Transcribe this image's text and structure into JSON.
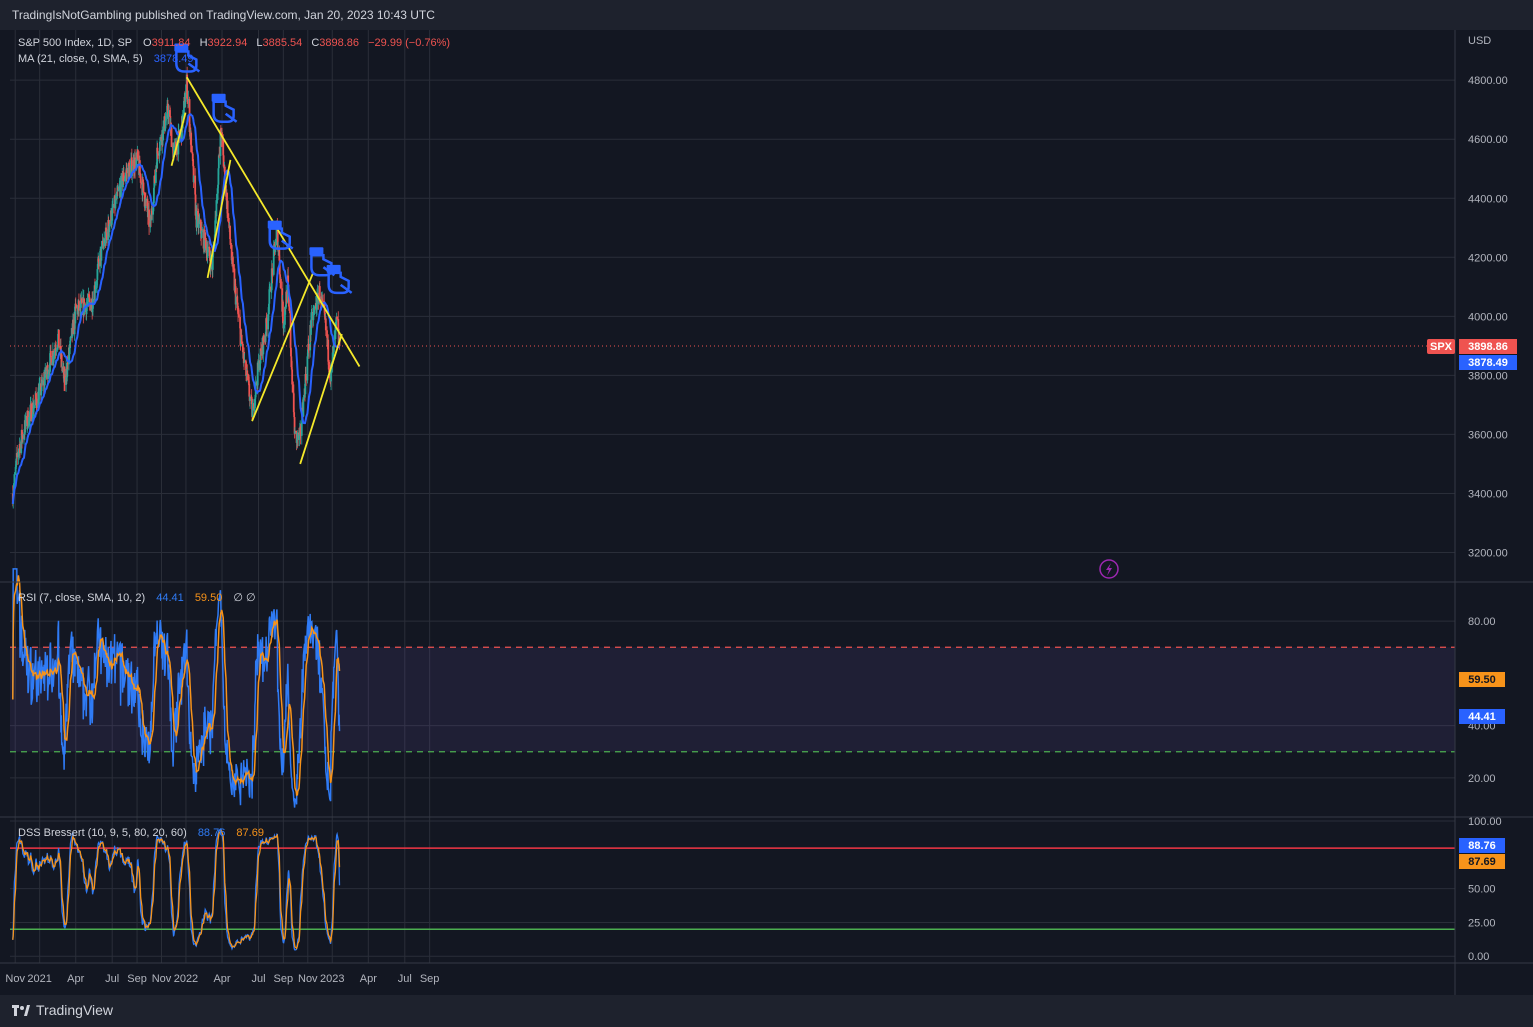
{
  "header": {
    "published": "TradingIsNotGambling published on TradingView.com, Jan 20, 2023 10:43 UTC"
  },
  "footer": {
    "brand": "TradingView"
  },
  "colors": {
    "bg": "#131722",
    "grid": "#2a2e39",
    "up": "#26a69a",
    "down": "#ef5350",
    "ma": "#2962ff",
    "rsi": "#2f7bf5",
    "rsi_ma": "#f7931a",
    "trend": "#f5e92a"
  },
  "legend": {
    "main_name": "S&P 500 Index, 1D, SP",
    "o_label": "O",
    "o": "3911.84",
    "h_label": "H",
    "h": "3922.94",
    "l_label": "L",
    "l": "3885.54",
    "c_label": "C",
    "c": "3898.86",
    "chg": "−29.99 (−0.76%)",
    "ma_name": "MA (21, close, 0, SMA, 5)",
    "ma_val": "3878.49",
    "rsi_name": "RSI (7, close, SMA, 10, 2)",
    "rsi_val": "44.41",
    "rsi_ma_val": "59.50",
    "rsi_extra": "∅  ∅",
    "dss_name": "DSS Bressert (10, 9, 5, 80, 20, 60)",
    "dss_k": "88.76",
    "dss_d": "87.69"
  },
  "price_axis": {
    "unit": "USD",
    "ticks": [
      "4800.00",
      "4600.00",
      "4400.00",
      "4200.00",
      "4000.00",
      "3800.00",
      "3600.00",
      "3400.00",
      "3200.00"
    ]
  },
  "rsi_axis": {
    "ticks": [
      "80.00",
      "40.00",
      "20.00"
    ]
  },
  "dss_axis": {
    "ticks": [
      "100.00",
      "50.00",
      "25.00",
      "0.00"
    ]
  },
  "badges": {
    "symbol": "SPX",
    "last": "3898.86",
    "ma": "3878.49",
    "rsi": "44.41",
    "rsi_ma": "59.50",
    "dss_k": "88.76",
    "dss_d": "87.69"
  },
  "time_axis": {
    "labels": [
      "Nov",
      "2021",
      "Apr",
      "Jul",
      "Sep",
      "Nov",
      "2022",
      "Apr",
      "Jul",
      "Sep",
      "Nov",
      "2023",
      "Apr",
      "Jul",
      "Sep"
    ]
  },
  "chart_data": [
    {
      "type": "line",
      "title": "S&P 500 Index, 1D, SP",
      "ylabel": "USD",
      "ylim": [
        3100,
        4970
      ],
      "x": [
        "2020-10-26",
        "2020-11-09",
        "2020-12-01",
        "2021-01-04",
        "2021-02-16",
        "2021-03-04",
        "2021-04-01",
        "2021-05-12",
        "2021-06-01",
        "2021-07-01",
        "2021-08-01",
        "2021-09-02",
        "2021-10-04",
        "2021-10-21",
        "2021-11-18",
        "2021-12-01",
        "2021-12-20",
        "2022-01-03",
        "2022-01-27",
        "2022-02-23",
        "2022-03-08",
        "2022-03-29",
        "2022-04-28",
        "2022-05-20",
        "2022-06-16",
        "2022-07-01",
        "2022-07-20",
        "2022-08-16",
        "2022-09-01",
        "2022-09-12",
        "2022-09-30",
        "2022-10-12",
        "2022-11-01",
        "2022-11-10",
        "2022-11-30",
        "2022-12-13",
        "2022-12-28",
        "2023-01-12",
        "2023-01-19"
      ],
      "series": [
        {
          "values": [
            3400,
            3550,
            3650,
            3750,
            3930,
            3770,
            4020,
            4050,
            4200,
            4350,
            4480,
            4530,
            4300,
            4550,
            4700,
            4550,
            4620,
            4790,
            4330,
            4230,
            4170,
            4630,
            4150,
            3900,
            3670,
            3830,
            3960,
            4300,
            3980,
            4110,
            3590,
            3580,
            3870,
            3980,
            4080,
            3990,
            3800,
            3980,
            3898.86
          ]
        }
      ],
      "annotations": [
        {
          "type": "trendline",
          "from": [
            "2022-01-03",
            4810
          ],
          "to": [
            "2023-03-10",
            3830
          ]
        },
        {
          "type": "trendline",
          "from": [
            "2021-11-26",
            4510
          ],
          "to": [
            "2021-12-31",
            4690
          ]
        },
        {
          "type": "trendline",
          "from": [
            "2022-02-24",
            4130
          ],
          "to": [
            "2022-04-22",
            4530
          ]
        },
        {
          "type": "trendline",
          "from": [
            "2022-06-15",
            3645
          ],
          "to": [
            "2022-11-15",
            4150
          ]
        },
        {
          "type": "trendline",
          "from": [
            "2022-10-13",
            3500
          ],
          "to": [
            "2023-01-25",
            3940
          ]
        }
      ]
    },
    {
      "type": "line",
      "title": "RSI (7, close, SMA, 10, 2)",
      "ylim": [
        5,
        95
      ],
      "levels": {
        "upper": 70,
        "lower": 30
      },
      "last": {
        "rsi": 44.41,
        "rsi_ma": 59.5
      }
    },
    {
      "type": "line",
      "title": "DSS Bressert (10, 9, 5, 80, 20, 60)",
      "ylim": [
        -5,
        103
      ],
      "levels": {
        "upper": 80,
        "lower": 20
      },
      "last": {
        "k": 88.76,
        "d": 87.69
      }
    }
  ]
}
